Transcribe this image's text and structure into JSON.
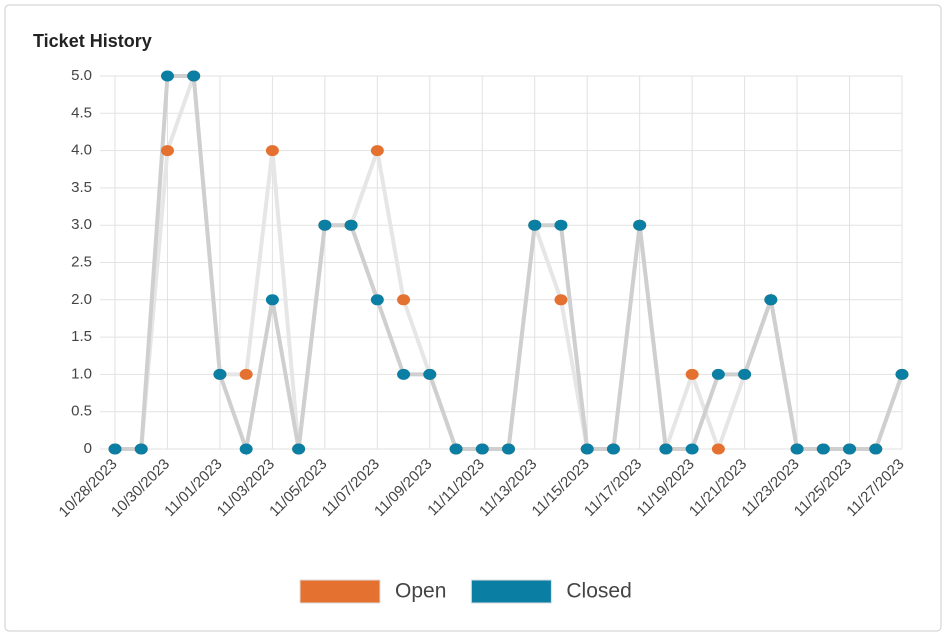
{
  "chart_data": {
    "type": "line",
    "title": "Ticket History",
    "categories": [
      "10/28/2023",
      null,
      "10/30/2023",
      null,
      "11/01/2023",
      null,
      "11/03/2023",
      null,
      "11/05/2023",
      null,
      "11/07/2023",
      null,
      "11/09/2023",
      null,
      "11/11/2023",
      null,
      "11/13/2023",
      null,
      "11/15/2023",
      null,
      "11/17/2023",
      null,
      "11/19/2023",
      null,
      "11/21/2023",
      null,
      "11/23/2023",
      null,
      "11/25/2023",
      null,
      "11/27/2023"
    ],
    "series": [
      {
        "name": "Open",
        "color": "#e4712f",
        "line_color": "#e6e6e6",
        "values": [
          0,
          0,
          4,
          5,
          1,
          1,
          4,
          0,
          3,
          3,
          4,
          2,
          1,
          0,
          0,
          0,
          3,
          2,
          0,
          0,
          3,
          0,
          1,
          0,
          1,
          2,
          0,
          0,
          0,
          0,
          1
        ]
      },
      {
        "name": "Closed",
        "color": "#0b7fa3",
        "line_color": "#cfcfcf",
        "values": [
          0,
          0,
          5,
          5,
          1,
          0,
          2,
          0,
          3,
          3,
          2,
          1,
          1,
          0,
          0,
          0,
          3,
          3,
          0,
          0,
          3,
          0,
          0,
          1,
          1,
          2,
          0,
          0,
          0,
          0,
          1
        ]
      }
    ],
    "ylim": [
      0,
      5
    ],
    "yticks": [
      0,
      0.5,
      {
        "value": 1,
        "label": "1.0"
      },
      1.5,
      {
        "value": 2,
        "label": "2.0"
      },
      2.5,
      {
        "value": 3,
        "label": "3.0"
      },
      3.5,
      {
        "value": 4,
        "label": "4.0"
      },
      4.5,
      {
        "value": 5,
        "label": "5.0"
      }
    ],
    "grid": true,
    "legend": "bottom"
  }
}
